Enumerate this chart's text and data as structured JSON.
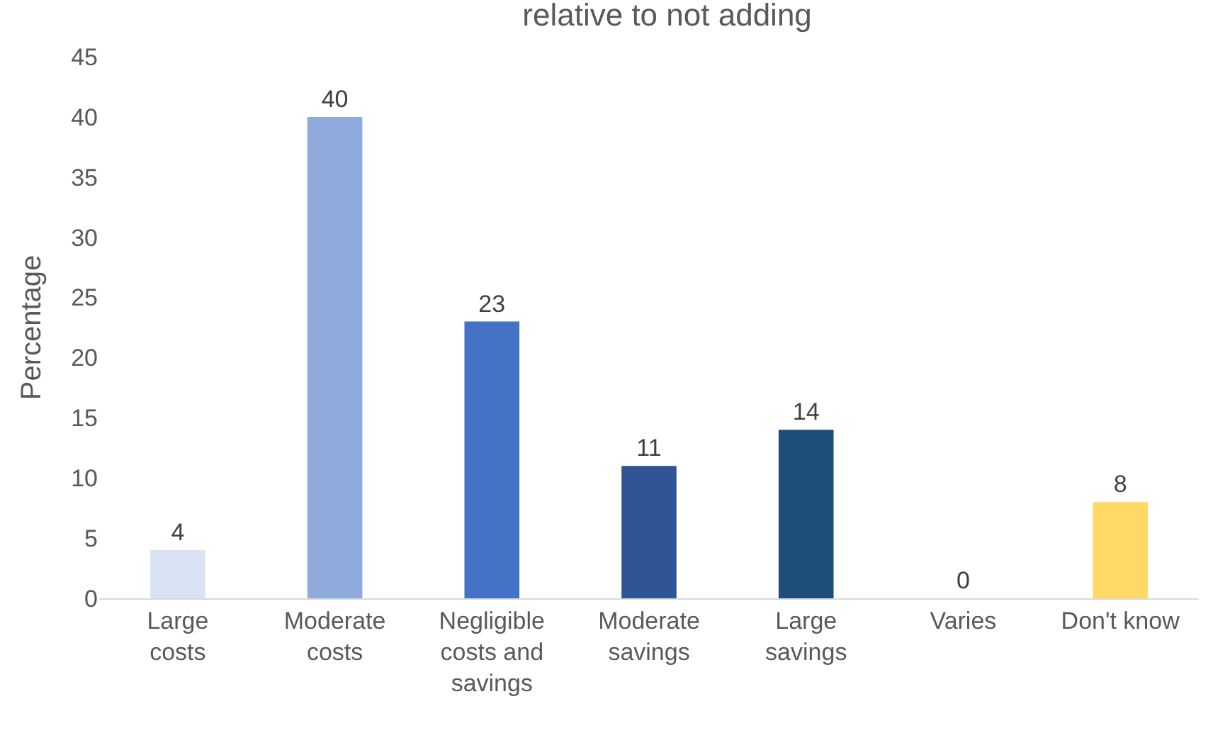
{
  "chart_data": {
    "type": "bar",
    "title": "relative to not adding",
    "ylabel": "Percentage",
    "categories": [
      "Large costs",
      "Moderate costs",
      "Negligible costs and savings",
      "Moderate savings",
      "Large savings",
      "Varies",
      "Don't know"
    ],
    "values": [
      4,
      40,
      23,
      11,
      14,
      0,
      8
    ],
    "colors": [
      "#dae3f3",
      "#8faadc",
      "#4472c4",
      "#2f5597",
      "#1f4e79",
      "#1f4e79",
      "#ffd966"
    ],
    "ylim": [
      0,
      45
    ],
    "yticks": [
      0,
      5,
      10,
      15,
      20,
      25,
      30,
      35,
      40,
      45
    ],
    "grid": false,
    "data_labels": true
  }
}
